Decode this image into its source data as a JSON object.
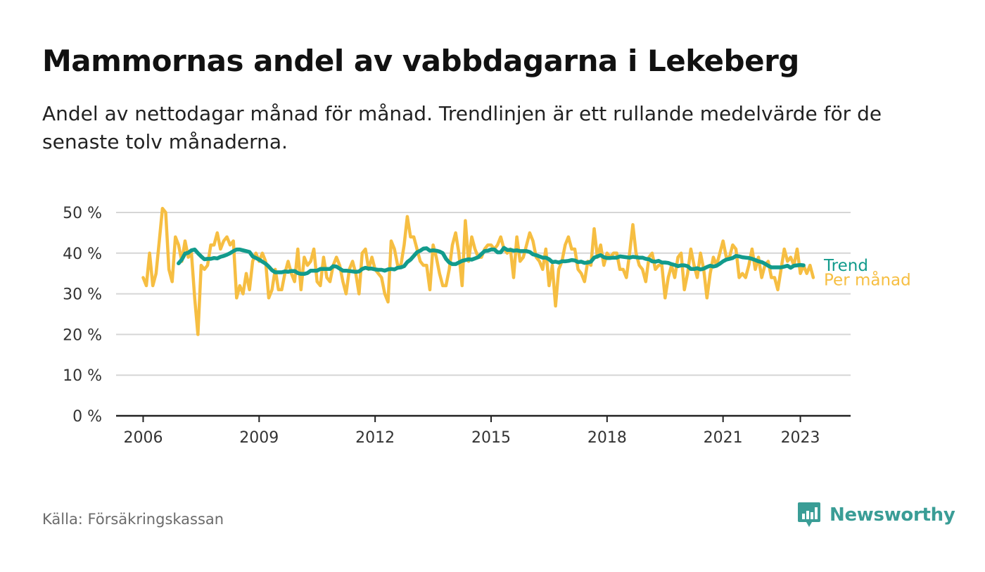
{
  "header": {
    "title": "Mammornas andel av vabbdagarna i Lekeberg",
    "subtitle": "Andel av nettodagar månad för månad. Trendlinjen är ett rullande medelvärde för de senaste tolv månaderna."
  },
  "footer": {
    "source": "Källa: Försäkringskassan",
    "brand": "Newsworthy"
  },
  "colors": {
    "monthly": "#f6be42",
    "trend": "#129b8c",
    "grid": "#d6d6d6",
    "axis": "#222222",
    "brand": "#3a9d96"
  },
  "chart_data": {
    "type": "line",
    "x_start": "2006-01",
    "x_end": "2023-05",
    "x_tick_labels": [
      "2006",
      "2009",
      "2012",
      "2015",
      "2018",
      "2021",
      "2023"
    ],
    "x_tick_values": [
      2006,
      2009,
      2012,
      2015,
      2018,
      2021,
      2023
    ],
    "y_tick_values": [
      0,
      10,
      20,
      30,
      40,
      50
    ],
    "y_tick_labels": [
      "0 %",
      "10 %",
      "20 %",
      "30 %",
      "40 %",
      "50 %"
    ],
    "ylim": [
      0,
      50
    ],
    "xlim": [
      2005.3,
      2024.3
    ],
    "grid": true,
    "series": [
      {
        "name": "Per månad",
        "first_month": "2006-01",
        "values": [
          34,
          32,
          40,
          32,
          35,
          43,
          51,
          50,
          36,
          33,
          44,
          42,
          38,
          43,
          39,
          40,
          29,
          20,
          37,
          36,
          37,
          42,
          42,
          45,
          41,
          43,
          44,
          42,
          43,
          29,
          32,
          30,
          35,
          31,
          38,
          40,
          38,
          40,
          38,
          29,
          31,
          36,
          31,
          31,
          35,
          38,
          35,
          33,
          41,
          31,
          39,
          37,
          38,
          41,
          33,
          32,
          39,
          34,
          33,
          37,
          39,
          37,
          33,
          30,
          36,
          38,
          35,
          30,
          40,
          41,
          36,
          39,
          36,
          35,
          34,
          30,
          28,
          43,
          41,
          37,
          37,
          42,
          49,
          44,
          44,
          41,
          38,
          37,
          37,
          31,
          42,
          39,
          35,
          32,
          32,
          36,
          42,
          45,
          40,
          32,
          48,
          38,
          44,
          41,
          39,
          39,
          41,
          42,
          42,
          41,
          42,
          44,
          41,
          40,
          41,
          34,
          44,
          38,
          39,
          42,
          45,
          43,
          39,
          38,
          36,
          41,
          32,
          37,
          27,
          36,
          38,
          42,
          44,
          41,
          41,
          36,
          35,
          33,
          38,
          37,
          46,
          39,
          42,
          37,
          40,
          39,
          40,
          40,
          36,
          36,
          34,
          40,
          47,
          40,
          37,
          36,
          33,
          39,
          40,
          36,
          37,
          37,
          29,
          34,
          37,
          34,
          39,
          40,
          31,
          35,
          41,
          37,
          34,
          40,
          36,
          29,
          35,
          39,
          37,
          40,
          43,
          39,
          39,
          42,
          41,
          34,
          35,
          34,
          37,
          41,
          36,
          39,
          34,
          37,
          38,
          34,
          34,
          31,
          36,
          41,
          38,
          39,
          37,
          41,
          35,
          37,
          35,
          37,
          34
        ]
      },
      {
        "name": "Trend",
        "first_month": "2006-12",
        "values": [
          37.5,
          38.4,
          39.9,
          40.1,
          40.7,
          40.9,
          40.0,
          39.2,
          38.5,
          38.6,
          38.6,
          38.8,
          38.7,
          39.1,
          39.3,
          39.6,
          40.0,
          40.5,
          40.9,
          40.9,
          40.7,
          40.5,
          40.3,
          39.2,
          38.8,
          38.4,
          37.9,
          37.4,
          36.7,
          35.8,
          35.3,
          35.3,
          35.3,
          35.5,
          35.4,
          35.6,
          35.6,
          35.1,
          34.9,
          34.9,
          35.1,
          35.7,
          35.7,
          35.7,
          36.1,
          36.1,
          36.1,
          36.1,
          36.8,
          36.7,
          36.2,
          35.7,
          35.7,
          35.6,
          35.5,
          35.4,
          35.5,
          36.1,
          36.4,
          36.2,
          36.2,
          36.0,
          35.9,
          35.9,
          35.7,
          36.0,
          36.1,
          36.0,
          36.4,
          36.5,
          36.8,
          37.8,
          38.4,
          39.3,
          40.2,
          40.6,
          41.1,
          41.2,
          40.6,
          40.7,
          40.6,
          40.4,
          40.0,
          38.6,
          37.7,
          37.3,
          37.3,
          37.7,
          38.1,
          38.3,
          38.5,
          38.4,
          38.7,
          39.0,
          39.8,
          40.5,
          40.6,
          40.9,
          40.9,
          40.2,
          40.2,
          41.3,
          40.8,
          40.8,
          40.6,
          40.7,
          40.5,
          40.5,
          40.5,
          40.3,
          39.7,
          39.5,
          39.2,
          38.9,
          38.9,
          38.5,
          37.8,
          37.9,
          37.7,
          38.0,
          38.0,
          38.1,
          38.3,
          38.2,
          37.8,
          37.9,
          37.6,
          37.7,
          37.9,
          38.9,
          39.2,
          39.5,
          39.0,
          38.8,
          38.8,
          38.9,
          38.9,
          39.2,
          39.1,
          39.0,
          38.9,
          39.1,
          39.0,
          38.9,
          38.9,
          38.6,
          38.5,
          38.0,
          37.9,
          38.1,
          37.7,
          37.7,
          37.6,
          37.3,
          37.1,
          36.8,
          37.0,
          37.0,
          36.8,
          36.1,
          36.1,
          36.3,
          36.0,
          36.2,
          36.6,
          36.9,
          36.7,
          36.9,
          37.4,
          38.0,
          38.4,
          38.6,
          38.8,
          39.3,
          39.2,
          39.0,
          38.9,
          38.8,
          38.6,
          38.3,
          38.0,
          37.8,
          37.4,
          36.9,
          36.5,
          36.5,
          36.5,
          36.5,
          36.7,
          36.9,
          36.4,
          36.9,
          37.0,
          37.1,
          37.0
        ]
      }
    ]
  }
}
